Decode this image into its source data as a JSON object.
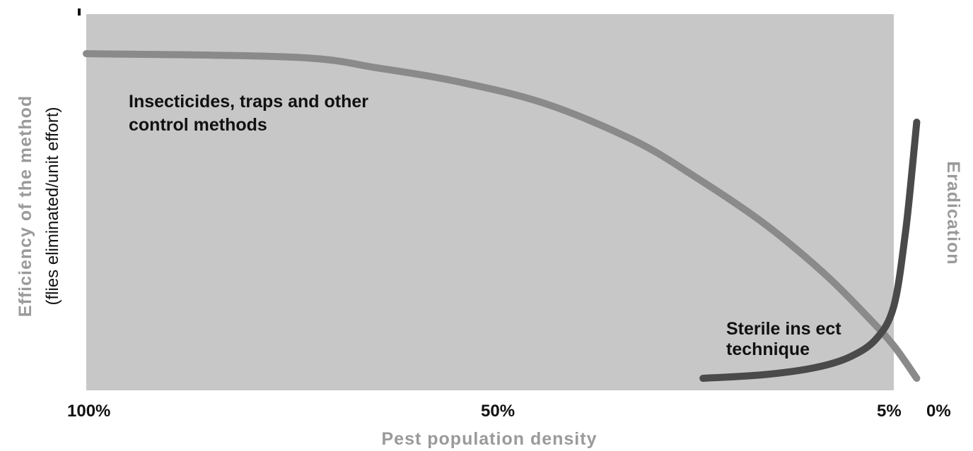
{
  "chart_data": {
    "type": "line",
    "xlabel": "Pest population density",
    "ylabel": "Efficiency of the method",
    "ylabel_secondary": "(flies eliminated/unit effort)",
    "side_label": "Eradication",
    "x_ticks": [
      "100%",
      "50%",
      "5%",
      "0%"
    ],
    "series": [
      {
        "color": "#8a8a8a",
        "points": [
          [
            100,
            0.9
          ],
          [
            75,
            0.89
          ],
          [
            65,
            0.86
          ],
          [
            55,
            0.82
          ],
          [
            45,
            0.76
          ],
          [
            35,
            0.66
          ],
          [
            28,
            0.56
          ],
          [
            20,
            0.43
          ],
          [
            13,
            0.29
          ],
          [
            8,
            0.17
          ],
          [
            5,
            0.09
          ],
          [
            2,
            0.0
          ]
        ]
      },
      {
        "color": "#4a4a4a",
        "points": [
          [
            27,
            0.0
          ],
          [
            20,
            0.01
          ],
          [
            14,
            0.03
          ],
          [
            10,
            0.06
          ],
          [
            7,
            0.11
          ],
          [
            5,
            0.2
          ],
          [
            3.5,
            0.4
          ],
          [
            2.5,
            0.6
          ],
          [
            2,
            0.71
          ]
        ]
      }
    ],
    "annotations": [
      {
        "lines": [
          "Insecticides, traps and other",
          "control methods"
        ]
      },
      {
        "lines": [
          "Sterile ins ect",
          "technique"
        ]
      }
    ]
  },
  "colors": {
    "plot_bg": "#c7c7c7",
    "axis_title": "#9a9a9a",
    "dark": "#111111"
  }
}
